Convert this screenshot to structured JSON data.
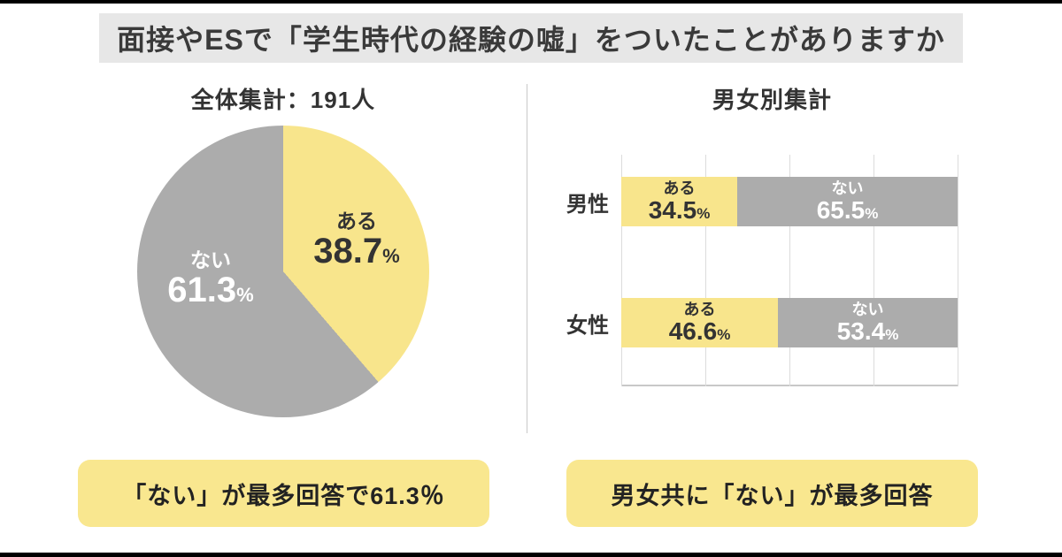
{
  "page": {
    "title": "面接やESで「学生時代の経験の嘘」をついたことがありますか"
  },
  "units": {
    "percent": "%"
  },
  "left_panel": {
    "heading": "全体集計：191人",
    "callout": "「ない」が最多回答で61.3％"
  },
  "right_panel": {
    "heading": "男女別集計",
    "callout": "男女共に「ない」が最多回答"
  },
  "colors": {
    "yes_yellow": "#F8E58C",
    "no_gray": "#ACACAC",
    "title_bg": "#E7E7E7",
    "callout_bg": "#F9E78F",
    "text_dark": "#333333",
    "text_white": "#FFFFFF"
  },
  "chart_data": [
    {
      "type": "pie",
      "title": "全体集計：191人",
      "total_respondents": 191,
      "start_angle_deg": 0,
      "direction": "clockwise",
      "slices": [
        {
          "label": "ある",
          "value": 38.7,
          "color": "#F8E58C",
          "text_color": "#333333"
        },
        {
          "label": "ない",
          "value": 61.3,
          "color": "#ACACAC",
          "text_color": "#FFFFFF"
        }
      ]
    },
    {
      "type": "bar",
      "title": "男女別集計",
      "orientation": "horizontal",
      "stacked": true,
      "categories": [
        "男性",
        "女性"
      ],
      "series": [
        {
          "name": "ある",
          "color": "#F8E58C",
          "text_color": "#333333",
          "values": [
            34.5,
            46.6
          ]
        },
        {
          "name": "ない",
          "color": "#ACACAC",
          "text_color": "#FFFFFF",
          "values": [
            65.5,
            53.4
          ]
        }
      ],
      "xlim": [
        0,
        100
      ],
      "grid": true,
      "gridlines_percent": [
        0,
        25,
        50,
        75,
        100
      ]
    }
  ]
}
